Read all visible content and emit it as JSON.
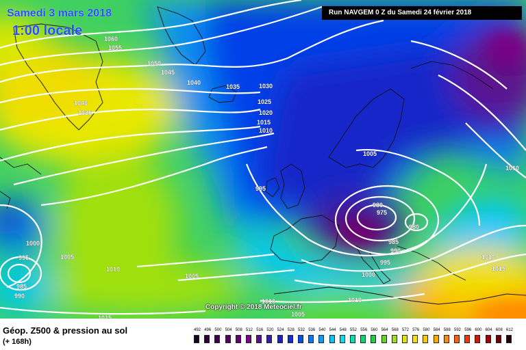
{
  "header": {
    "date": "Samedi 3 mars 2018",
    "time": "1:00 locale",
    "run": "Run NAVGEM 0 Z du Samedi 24 février 2018"
  },
  "copyright": "Copyright © 2018 Meteociel.fr",
  "legend": {
    "title": "Géop. Z500 & pression au sol",
    "subtitle": "(+ 168h)",
    "scale": [
      {
        "v": "492",
        "c": "#1a0020"
      },
      {
        "v": "496",
        "c": "#2a0032"
      },
      {
        "v": "500",
        "c": "#3d0048"
      },
      {
        "v": "504",
        "c": "#52005c"
      },
      {
        "v": "508",
        "c": "#660070"
      },
      {
        "v": "512",
        "c": "#7a0086"
      },
      {
        "v": "516",
        "c": "#5a1090"
      },
      {
        "v": "520",
        "c": "#3c1aa8"
      },
      {
        "v": "524",
        "c": "#2020c0"
      },
      {
        "v": "528",
        "c": "#1030d8"
      },
      {
        "v": "532",
        "c": "#0050f0"
      },
      {
        "v": "536",
        "c": "#0078ff"
      },
      {
        "v": "540",
        "c": "#00a0ff"
      },
      {
        "v": "544",
        "c": "#00c8ff"
      },
      {
        "v": "548",
        "c": "#00e0e8"
      },
      {
        "v": "552",
        "c": "#00e0b0"
      },
      {
        "v": "556",
        "c": "#00d878"
      },
      {
        "v": "560",
        "c": "#20d040"
      },
      {
        "v": "564",
        "c": "#60d820"
      },
      {
        "v": "568",
        "c": "#a0e010"
      },
      {
        "v": "572",
        "c": "#d8e800"
      },
      {
        "v": "576",
        "c": "#f8e000"
      },
      {
        "v": "580",
        "c": "#ffc800"
      },
      {
        "v": "584",
        "c": "#ffa800"
      },
      {
        "v": "588",
        "c": "#ff8800"
      },
      {
        "v": "592",
        "c": "#ff6000"
      },
      {
        "v": "596",
        "c": "#f03800"
      },
      {
        "v": "600",
        "c": "#d01800"
      },
      {
        "v": "604",
        "c": "#a00000"
      },
      {
        "v": "608",
        "c": "#6a0000"
      },
      {
        "v": "612",
        "c": "#200000"
      }
    ]
  },
  "pressure_labels": [
    "1060",
    "1055",
    "1050",
    "1045",
    "1040",
    "1035",
    "1040",
    "1035",
    "1030",
    "1025",
    "1020",
    "1015",
    "1010",
    "1005",
    "995",
    "980",
    "975",
    "980",
    "985",
    "990",
    "995",
    "1000",
    "1000",
    "995",
    "1005",
    "1010",
    "1005",
    "985",
    "990",
    "1010",
    "1015",
    "1010",
    "1005",
    "1010",
    "1010",
    "1015"
  ]
}
